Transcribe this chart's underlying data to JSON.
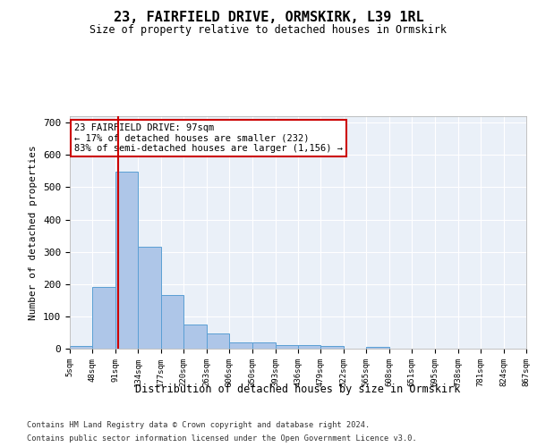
{
  "title": "23, FAIRFIELD DRIVE, ORMSKIRK, L39 1RL",
  "subtitle": "Size of property relative to detached houses in Ormskirk",
  "xlabel": "Distribution of detached houses by size in Ormskirk",
  "ylabel": "Number of detached properties",
  "bar_values": [
    8,
    190,
    548,
    315,
    165,
    76,
    47,
    19,
    19,
    12,
    12,
    8,
    0,
    5,
    0,
    0,
    0,
    0,
    0,
    0
  ],
  "bin_edges": [
    5,
    48,
    91,
    134,
    177,
    220,
    263,
    306,
    350,
    393,
    436,
    479,
    522,
    565,
    608,
    651,
    695,
    738,
    781,
    824,
    867
  ],
  "tick_labels": [
    "5sqm",
    "48sqm",
    "91sqm",
    "134sqm",
    "177sqm",
    "220sqm",
    "263sqm",
    "306sqm",
    "350sqm",
    "393sqm",
    "436sqm",
    "479sqm",
    "522sqm",
    "565sqm",
    "608sqm",
    "651sqm",
    "695sqm",
    "738sqm",
    "781sqm",
    "824sqm",
    "867sqm"
  ],
  "bar_color": "#aec6e8",
  "bar_edge_color": "#5a9fd4",
  "property_line_x": 97,
  "property_line_color": "#cc0000",
  "annotation_text": "23 FAIRFIELD DRIVE: 97sqm\n← 17% of detached houses are smaller (232)\n83% of semi-detached houses are larger (1,156) →",
  "annotation_box_color": "#ffffff",
  "annotation_box_edge": "#cc0000",
  "ylim": [
    0,
    720
  ],
  "yticks": [
    0,
    100,
    200,
    300,
    400,
    500,
    600,
    700
  ],
  "background_color": "#eaf0f8",
  "grid_color": "#ffffff",
  "footer_line1": "Contains HM Land Registry data © Crown copyright and database right 2024.",
  "footer_line2": "Contains public sector information licensed under the Open Government Licence v3.0."
}
